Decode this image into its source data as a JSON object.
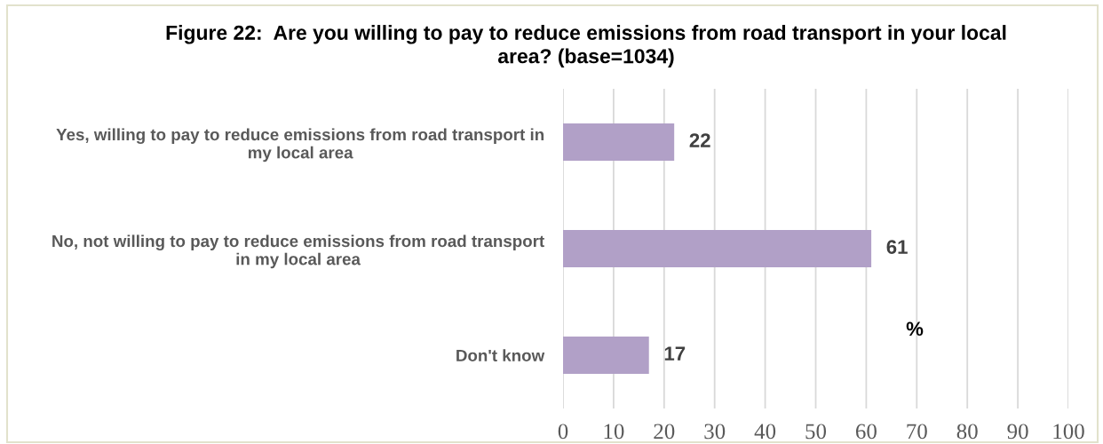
{
  "chart_data": {
    "type": "bar",
    "orientation": "horizontal",
    "title": "Figure 22:  Are you willing to pay to reduce emissions from road transport in your local\narea? (base=1034)",
    "categories": [
      "Yes, willing to pay to reduce emissions from road transport in\nmy local area",
      "No, not willing to pay to reduce emissions from road transport\nin my local area",
      "Don't know"
    ],
    "values": [
      22,
      61,
      17
    ],
    "color": "#b1a0c7",
    "xlabel": "%",
    "xlim": [
      0,
      100
    ],
    "xticks": [
      0,
      10,
      20,
      30,
      40,
      50,
      60,
      70,
      80,
      90,
      100
    ],
    "grid": "x",
    "data_labels": true
  }
}
